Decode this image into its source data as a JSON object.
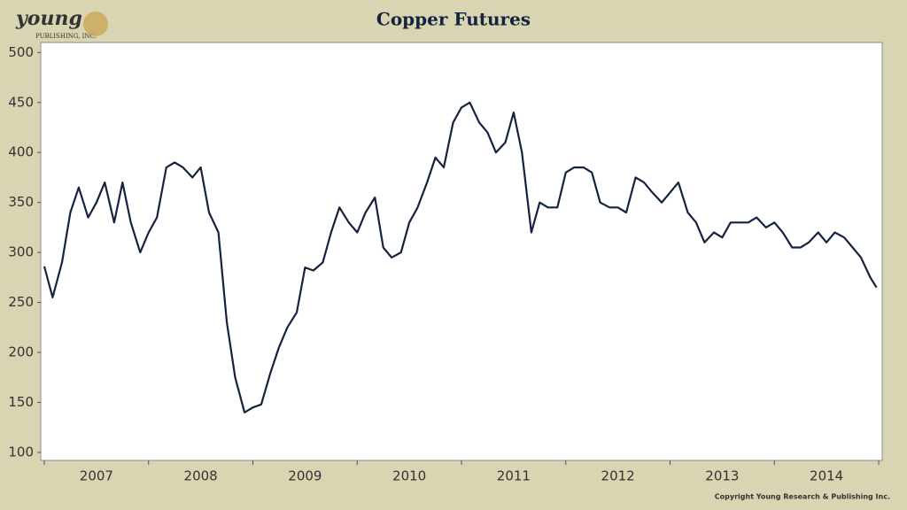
{
  "logo": {
    "name": "young",
    "sub": "PUBLISHING, INC."
  },
  "copyright": "Copyright Young Research & Publishing Inc.",
  "chart_data": {
    "type": "line",
    "title": "Copper Futures",
    "x": [
      2007.0,
      2007.08,
      2007.17,
      2007.25,
      2007.33,
      2007.42,
      2007.5,
      2007.58,
      2007.67,
      2007.75,
      2007.83,
      2007.92,
      2008.0,
      2008.08,
      2008.17,
      2008.25,
      2008.33,
      2008.42,
      2008.5,
      2008.58,
      2008.67,
      2008.75,
      2008.83,
      2008.92,
      2009.0,
      2009.08,
      2009.17,
      2009.25,
      2009.33,
      2009.42,
      2009.5,
      2009.58,
      2009.67,
      2009.75,
      2009.83,
      2009.92,
      2010.0,
      2010.08,
      2010.17,
      2010.25,
      2010.33,
      2010.42,
      2010.5,
      2010.58,
      2010.67,
      2010.75,
      2010.83,
      2010.92,
      2011.0,
      2011.08,
      2011.17,
      2011.25,
      2011.33,
      2011.42,
      2011.5,
      2011.58,
      2011.67,
      2011.75,
      2011.83,
      2011.92,
      2012.0,
      2012.08,
      2012.17,
      2012.25,
      2012.33,
      2012.42,
      2012.5,
      2012.58,
      2012.67,
      2012.75,
      2012.83,
      2012.92,
      2013.0,
      2013.08,
      2013.17,
      2013.25,
      2013.33,
      2013.42,
      2013.5,
      2013.58,
      2013.67,
      2013.75,
      2013.83,
      2013.92,
      2014.0,
      2014.08,
      2014.17,
      2014.25,
      2014.33,
      2014.42,
      2014.5,
      2014.58,
      2014.67,
      2014.75,
      2014.83,
      2014.92,
      2014.98
    ],
    "series": [
      {
        "name": "Copper",
        "color": "#14233f",
        "values": [
          286,
          255,
          290,
          340,
          365,
          335,
          350,
          370,
          330,
          370,
          330,
          300,
          320,
          335,
          385,
          390,
          385,
          375,
          385,
          340,
          320,
          230,
          175,
          140,
          145,
          148,
          180,
          205,
          225,
          240,
          285,
          282,
          290,
          320,
          345,
          330,
          320,
          340,
          355,
          305,
          295,
          300,
          330,
          345,
          370,
          395,
          385,
          430,
          445,
          450,
          430,
          420,
          400,
          410,
          440,
          400,
          320,
          350,
          345,
          345,
          380,
          385,
          385,
          380,
          350,
          345,
          345,
          340,
          375,
          370,
          360,
          350,
          360,
          370,
          340,
          330,
          310,
          320,
          315,
          330,
          330,
          330,
          335,
          325,
          330,
          320,
          305,
          305,
          310,
          320,
          310,
          320,
          315,
          305,
          295,
          275,
          265
        ]
      }
    ],
    "xlim": [
      2007,
      2015
    ],
    "xticks": [
      {
        "value": 2007.5,
        "label": "2007"
      },
      {
        "value": 2008.5,
        "label": "2008"
      },
      {
        "value": 2009.5,
        "label": "2009"
      },
      {
        "value": 2010.5,
        "label": "2010"
      },
      {
        "value": 2011.5,
        "label": "2011"
      },
      {
        "value": 2012.5,
        "label": "2012"
      },
      {
        "value": 2013.5,
        "label": "2013"
      },
      {
        "value": 2014.5,
        "label": "2014"
      }
    ],
    "xtick_marks": [
      2007,
      2008,
      2009,
      2010,
      2011,
      2012,
      2013,
      2014,
      2015
    ],
    "ylim": [
      92,
      510
    ],
    "yticks": [
      100,
      150,
      200,
      250,
      300,
      350,
      400,
      450,
      500
    ]
  }
}
